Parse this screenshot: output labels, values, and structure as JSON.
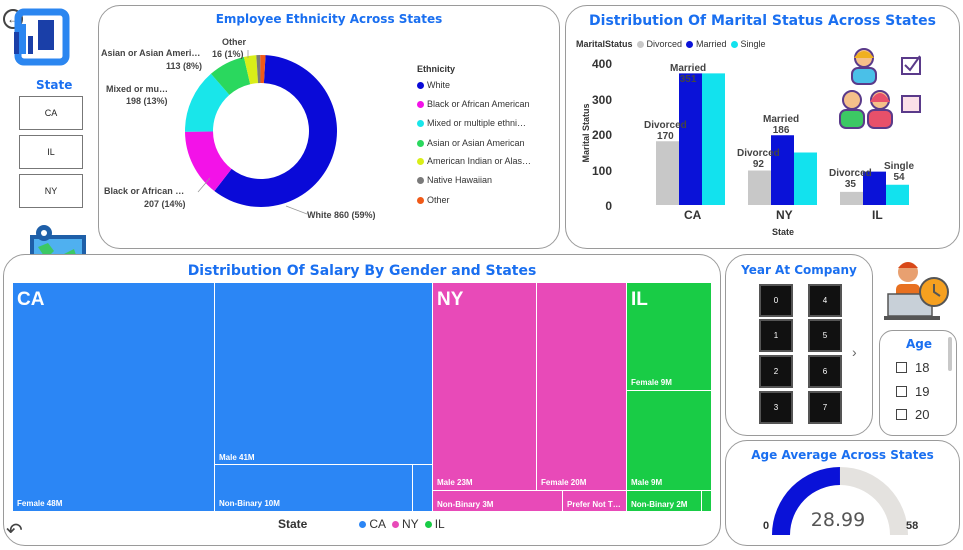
{
  "sidebar": {
    "state_label": "State",
    "states": [
      "CA",
      "IL",
      "NY"
    ]
  },
  "ethnicity_chart": {
    "title": "Employee Ethnicity Across States",
    "legend_title": "Ethnicity",
    "legend": [
      "White",
      "Black or African American",
      "Mixed or multiple ethni…",
      "Asian or Asian American",
      "American Indian or Alas…",
      "Native Hawaiian",
      "Other"
    ],
    "labels": {
      "white": "White 860 (59%)",
      "black_1": "Black or African …",
      "black_2": "207 (14%)",
      "mixed_1": "Mixed or mu…",
      "mixed_2": "198 (13%)",
      "asian_1": "Asian or Asian Ameri…",
      "asian_2": "113 (8%)",
      "other_1": "Other",
      "other_2": "16 (1%)"
    }
  },
  "marital_chart": {
    "title": "Distribution Of Marital Status Across States",
    "legend_title": "MaritalStatus",
    "legend": [
      "Divorced",
      "Married",
      "Single"
    ],
    "ylabel": "Marital Status",
    "xlabel": "State",
    "y_ticks": [
      "0",
      "100",
      "200",
      "300",
      "400"
    ],
    "bar_labels": {
      "ca_divorced": "Divorced",
      "ca_divorced_val": "170",
      "ca_married": "Married",
      "ca_married_val": "351",
      "ny_married": "Married",
      "ny_married_val": "186",
      "ny_divorced": "Divorced",
      "ny_divorced_val": "92",
      "il_divorced": "Divorced",
      "il_divorced_val": "35",
      "il_single": "Single",
      "il_single_val": "54"
    }
  },
  "salary_chart": {
    "title": "Distribution Of Salary By Gender and States",
    "legend_title": "State",
    "legend": [
      "CA",
      "NY",
      "IL"
    ],
    "states": {
      "ca": "CA",
      "ny": "NY",
      "il": "IL"
    },
    "cells": {
      "ca_female": "Female 48M",
      "ca_male": "Male 41M",
      "ca_nonbinary": "Non-Binary 10M",
      "ny_male": "Male 23M",
      "ny_female": "Female 20M",
      "ny_nonbinary": "Non-Binary 3M",
      "ny_prefer": "Prefer Not T…",
      "il_female": "Female 9M",
      "il_male": "Male 9M",
      "il_nonbinary": "Non-Binary 2M"
    }
  },
  "year_at_company": {
    "title": "Year At Company",
    "values": [
      "0",
      "4",
      "1",
      "5",
      "2",
      "6",
      "3",
      "7"
    ]
  },
  "age_filter": {
    "title": "Age",
    "values": [
      "18",
      "19",
      "20"
    ]
  },
  "age_gauge": {
    "title": "Age Average Across States",
    "value": "28.99",
    "min": "0",
    "max": "58",
    "fraction": 0.4998
  },
  "chart_data": [
    {
      "type": "pie",
      "title": "Employee Ethnicity Across States",
      "legend_title": "Ethnicity",
      "categories": [
        "White",
        "Black or African American",
        "Mixed or multiple ethnicities",
        "Asian or Asian American",
        "American Indian or Alaska Native",
        "Native Hawaiian",
        "Other"
      ],
      "values": [
        860,
        207,
        198,
        113,
        38,
        12,
        16
      ],
      "colors": [
        "#0a0ad8",
        "#f312e8",
        "#19e6ea",
        "#2ad85e",
        "#d9ee18",
        "#7a7a7a",
        "#f05a18"
      ]
    },
    {
      "type": "bar",
      "title": "Distribution Of Marital Status Across States",
      "categories": [
        "CA",
        "NY",
        "IL"
      ],
      "series": [
        {
          "name": "Divorced",
          "values": [
            170,
            92,
            35
          ],
          "color": "#c8c8c8"
        },
        {
          "name": "Married",
          "values": [
            351,
            186,
            89
          ],
          "color": "#0a12d8"
        },
        {
          "name": "Single",
          "values": [
            351,
            140,
            54
          ],
          "color": "#12e2ee"
        }
      ],
      "xlabel": "State",
      "ylabel": "Marital Status",
      "ylim": [
        0,
        400
      ]
    },
    {
      "type": "table",
      "title": "Distribution Of Salary By Gender and States",
      "rows": [
        {
          "state": "CA",
          "gender": "Female",
          "salary_millions": 48
        },
        {
          "state": "CA",
          "gender": "Male",
          "salary_millions": 41
        },
        {
          "state": "CA",
          "gender": "Non-Binary",
          "salary_millions": 10
        },
        {
          "state": "NY",
          "gender": "Male",
          "salary_millions": 23
        },
        {
          "state": "NY",
          "gender": "Female",
          "salary_millions": 20
        },
        {
          "state": "NY",
          "gender": "Non-Binary",
          "salary_millions": 3
        },
        {
          "state": "IL",
          "gender": "Female",
          "salary_millions": 9
        },
        {
          "state": "IL",
          "gender": "Male",
          "salary_millions": 9
        },
        {
          "state": "IL",
          "gender": "Non-Binary",
          "salary_millions": 2
        }
      ]
    }
  ]
}
